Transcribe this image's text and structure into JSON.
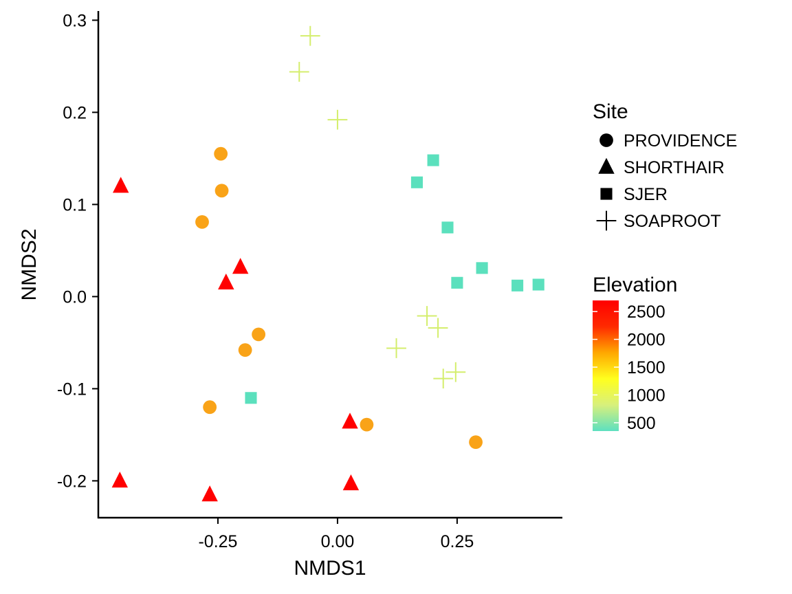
{
  "chart_data": {
    "type": "scatter",
    "xlabel": "NMDS1",
    "ylabel": "NMDS2",
    "xlim": [
      -0.5,
      0.47
    ],
    "ylim": [
      -0.24,
      0.31
    ],
    "xticks": [
      -0.25,
      0.0,
      0.25
    ],
    "xtick_labels": [
      "-0.25",
      "0.00",
      "0.25"
    ],
    "yticks": [
      -0.2,
      -0.1,
      0.0,
      0.1,
      0.2,
      0.3
    ],
    "ytick_labels": [
      "-0.2",
      "-0.1",
      "0.0",
      "0.1",
      "0.2",
      "0.3"
    ],
    "grid": false,
    "shape_legend": {
      "title": "Site",
      "entries": [
        {
          "label": "PROVIDENCE",
          "shape": "circle"
        },
        {
          "label": "SHORTHAIR",
          "shape": "triangle"
        },
        {
          "label": "SJER",
          "shape": "square"
        },
        {
          "label": "SOAPROOT",
          "shape": "plus"
        }
      ]
    },
    "color_legend": {
      "title": "Elevation",
      "ticks": [
        2500,
        2000,
        1500,
        1000,
        500
      ],
      "tick_labels": [
        "2500",
        "2000",
        "1500",
        "1000",
        "500"
      ],
      "range": [
        350,
        2700
      ],
      "gradient": [
        "#5ce0c0",
        "#d8f07c",
        "#ffff1e",
        "#ffa800",
        "#ff2a00",
        "#ff0000"
      ]
    },
    "legend_position": "right",
    "series": [
      {
        "name": "PROVIDENCE",
        "shape": "circle",
        "color": "#f9a318",
        "points": [
          {
            "x": -0.244,
            "y": 0.155
          },
          {
            "x": -0.242,
            "y": 0.115
          },
          {
            "x": -0.283,
            "y": 0.081
          },
          {
            "x": -0.165,
            "y": -0.041
          },
          {
            "x": -0.193,
            "y": -0.058
          },
          {
            "x": -0.267,
            "y": -0.12
          },
          {
            "x": 0.061,
            "y": -0.139
          },
          {
            "x": 0.289,
            "y": -0.158
          }
        ]
      },
      {
        "name": "SHORTHAIR",
        "shape": "triangle",
        "color": "#ff0000",
        "points": [
          {
            "x": -0.453,
            "y": 0.12
          },
          {
            "x": -0.203,
            "y": 0.032
          },
          {
            "x": -0.233,
            "y": 0.015
          },
          {
            "x": 0.026,
            "y": -0.136
          },
          {
            "x": -0.455,
            "y": -0.2
          },
          {
            "x": 0.028,
            "y": -0.203
          },
          {
            "x": -0.267,
            "y": -0.215
          }
        ]
      },
      {
        "name": "SJER",
        "shape": "square",
        "color": "#5be0bd",
        "points": [
          {
            "x": 0.2,
            "y": 0.148
          },
          {
            "x": 0.166,
            "y": 0.124
          },
          {
            "x": 0.23,
            "y": 0.075
          },
          {
            "x": 0.302,
            "y": 0.031
          },
          {
            "x": 0.25,
            "y": 0.015
          },
          {
            "x": 0.376,
            "y": 0.012
          },
          {
            "x": 0.42,
            "y": 0.013
          },
          {
            "x": -0.181,
            "y": -0.11
          }
        ]
      },
      {
        "name": "SOAPROOT",
        "shape": "plus",
        "color": "#d4ee6c",
        "points": [
          {
            "x": -0.057,
            "y": 0.283
          },
          {
            "x": -0.08,
            "y": 0.244
          },
          {
            "x": 0.0,
            "y": 0.192
          },
          {
            "x": 0.187,
            "y": -0.021
          },
          {
            "x": 0.21,
            "y": -0.034
          },
          {
            "x": 0.123,
            "y": -0.056
          },
          {
            "x": 0.247,
            "y": -0.082
          },
          {
            "x": 0.221,
            "y": -0.089
          }
        ]
      }
    ]
  }
}
